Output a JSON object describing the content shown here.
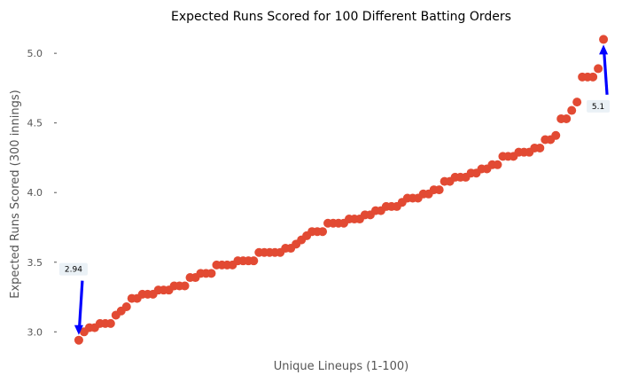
{
  "chart_data": {
    "type": "scatter",
    "title": "Expected Runs Scored for 100 Different Batting Orders",
    "xlabel": "Unique Lineups (1-100)",
    "ylabel": "Expected Runs Scored (300 innings)",
    "xlim": [
      -3,
      104
    ],
    "ylim": [
      2.9,
      5.16
    ],
    "yticks": [
      3.0,
      3.5,
      4.0,
      4.5,
      5.0
    ],
    "ytick_labels": [
      "3.0",
      "3.5",
      "4.0",
      "4.5",
      "5.0"
    ],
    "grid": false,
    "marker_color": "#e24a33",
    "x": [
      1,
      2,
      3,
      4,
      5,
      6,
      7,
      8,
      9,
      10,
      11,
      12,
      13,
      14,
      15,
      16,
      17,
      18,
      19,
      20,
      21,
      22,
      23,
      24,
      25,
      26,
      27,
      28,
      29,
      30,
      31,
      32,
      33,
      34,
      35,
      36,
      37,
      38,
      39,
      40,
      41,
      42,
      43,
      44,
      45,
      46,
      47,
      48,
      49,
      50,
      51,
      52,
      53,
      54,
      55,
      56,
      57,
      58,
      59,
      60,
      61,
      62,
      63,
      64,
      65,
      66,
      67,
      68,
      69,
      70,
      71,
      72,
      73,
      74,
      75,
      76,
      77,
      78,
      79,
      80,
      81,
      82,
      83,
      84,
      85,
      86,
      87,
      88,
      89,
      90,
      91,
      92,
      93,
      94,
      95,
      96,
      97,
      98,
      99,
      100
    ],
    "y": [
      2.94,
      3.0,
      3.03,
      3.03,
      3.06,
      3.06,
      3.06,
      3.12,
      3.15,
      3.18,
      3.24,
      3.24,
      3.27,
      3.27,
      3.27,
      3.3,
      3.3,
      3.3,
      3.33,
      3.33,
      3.33,
      3.39,
      3.39,
      3.42,
      3.42,
      3.42,
      3.48,
      3.48,
      3.48,
      3.48,
      3.51,
      3.51,
      3.51,
      3.51,
      3.57,
      3.57,
      3.57,
      3.57,
      3.57,
      3.6,
      3.6,
      3.63,
      3.66,
      3.69,
      3.72,
      3.72,
      3.72,
      3.78,
      3.78,
      3.78,
      3.78,
      3.81,
      3.81,
      3.81,
      3.84,
      3.84,
      3.87,
      3.87,
      3.9,
      3.9,
      3.9,
      3.93,
      3.96,
      3.96,
      3.96,
      3.99,
      3.99,
      4.02,
      4.02,
      4.08,
      4.08,
      4.11,
      4.11,
      4.11,
      4.14,
      4.14,
      4.17,
      4.17,
      4.2,
      4.2,
      4.26,
      4.26,
      4.26,
      4.29,
      4.29,
      4.29,
      4.32,
      4.32,
      4.38,
      4.38,
      4.41,
      4.53,
      4.53,
      4.59,
      4.65,
      4.83,
      4.83,
      4.83,
      4.89,
      5.1
    ],
    "annotations": [
      {
        "text": "2.94",
        "x": 1,
        "y": 2.94,
        "text_x": 0.0,
        "text_y": 3.45
      },
      {
        "text": "5.1",
        "x": 100,
        "y": 5.1,
        "text_x": 99.0,
        "text_y": 4.62
      }
    ]
  }
}
